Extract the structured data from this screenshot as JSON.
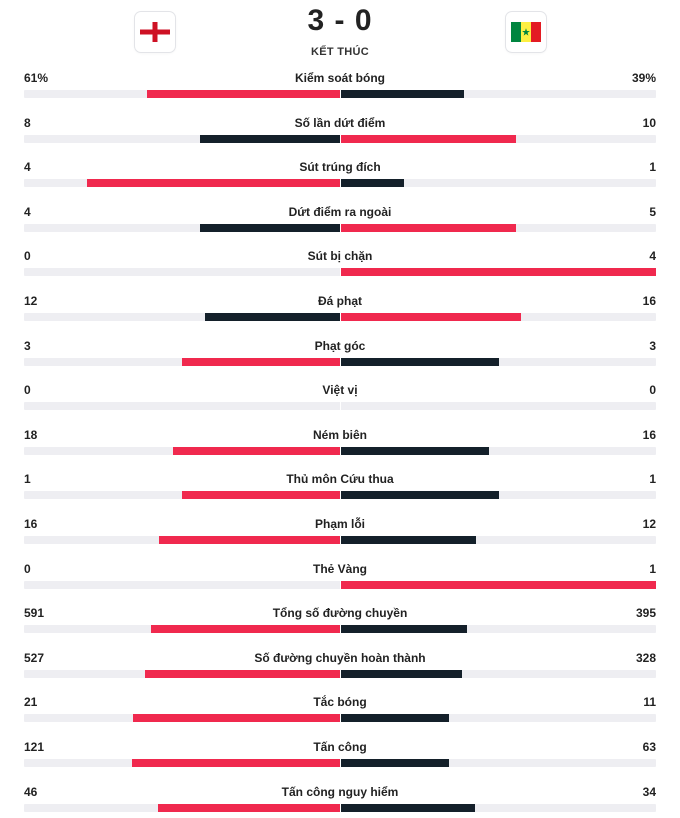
{
  "match": {
    "score": "3 - 0",
    "status": "KẾT THÚC",
    "home_flag": "england-flag-icon",
    "away_flag": "senegal-flag-icon"
  },
  "colors": {
    "winner_bar": "#f0294e",
    "loser_bar": "#14202a",
    "track": "#eeeef2"
  },
  "stats": [
    {
      "name": "Kiểm soát bóng",
      "home": "61%",
      "away": "39%",
      "home_value": 61,
      "away_value": 39
    },
    {
      "name": "Số lần dứt điểm",
      "home": "8",
      "away": "10",
      "home_value": 8,
      "away_value": 10
    },
    {
      "name": "Sút trúng đích",
      "home": "4",
      "away": "1",
      "home_value": 4,
      "away_value": 1
    },
    {
      "name": "Dứt điểm ra ngoài",
      "home": "4",
      "away": "5",
      "home_value": 4,
      "away_value": 5
    },
    {
      "name": "Sút bị chặn",
      "home": "0",
      "away": "4",
      "home_value": 0,
      "away_value": 4
    },
    {
      "name": "Đá phạt",
      "home": "12",
      "away": "16",
      "home_value": 12,
      "away_value": 16
    },
    {
      "name": "Phạt góc",
      "home": "3",
      "away": "3",
      "home_value": 3,
      "away_value": 3
    },
    {
      "name": "Việt vị",
      "home": "0",
      "away": "0",
      "home_value": 0,
      "away_value": 0
    },
    {
      "name": "Ném biên",
      "home": "18",
      "away": "16",
      "home_value": 18,
      "away_value": 16
    },
    {
      "name": "Thủ môn Cứu thua",
      "home": "1",
      "away": "1",
      "home_value": 1,
      "away_value": 1
    },
    {
      "name": "Phạm lỗi",
      "home": "16",
      "away": "12",
      "home_value": 16,
      "away_value": 12
    },
    {
      "name": "Thẻ Vàng",
      "home": "0",
      "away": "1",
      "home_value": 0,
      "away_value": 1
    },
    {
      "name": "Tổng số đường chuyền",
      "home": "591",
      "away": "395",
      "home_value": 591,
      "away_value": 395
    },
    {
      "name": "Số đường chuyền hoàn thành",
      "home": "527",
      "away": "328",
      "home_value": 527,
      "away_value": 328
    },
    {
      "name": "Tắc bóng",
      "home": "21",
      "away": "11",
      "home_value": 21,
      "away_value": 11
    },
    {
      "name": "Tấn công",
      "home": "121",
      "away": "63",
      "home_value": 121,
      "away_value": 63
    },
    {
      "name": "Tấn công nguy hiểm",
      "home": "46",
      "away": "34",
      "home_value": 46,
      "away_value": 34
    }
  ]
}
